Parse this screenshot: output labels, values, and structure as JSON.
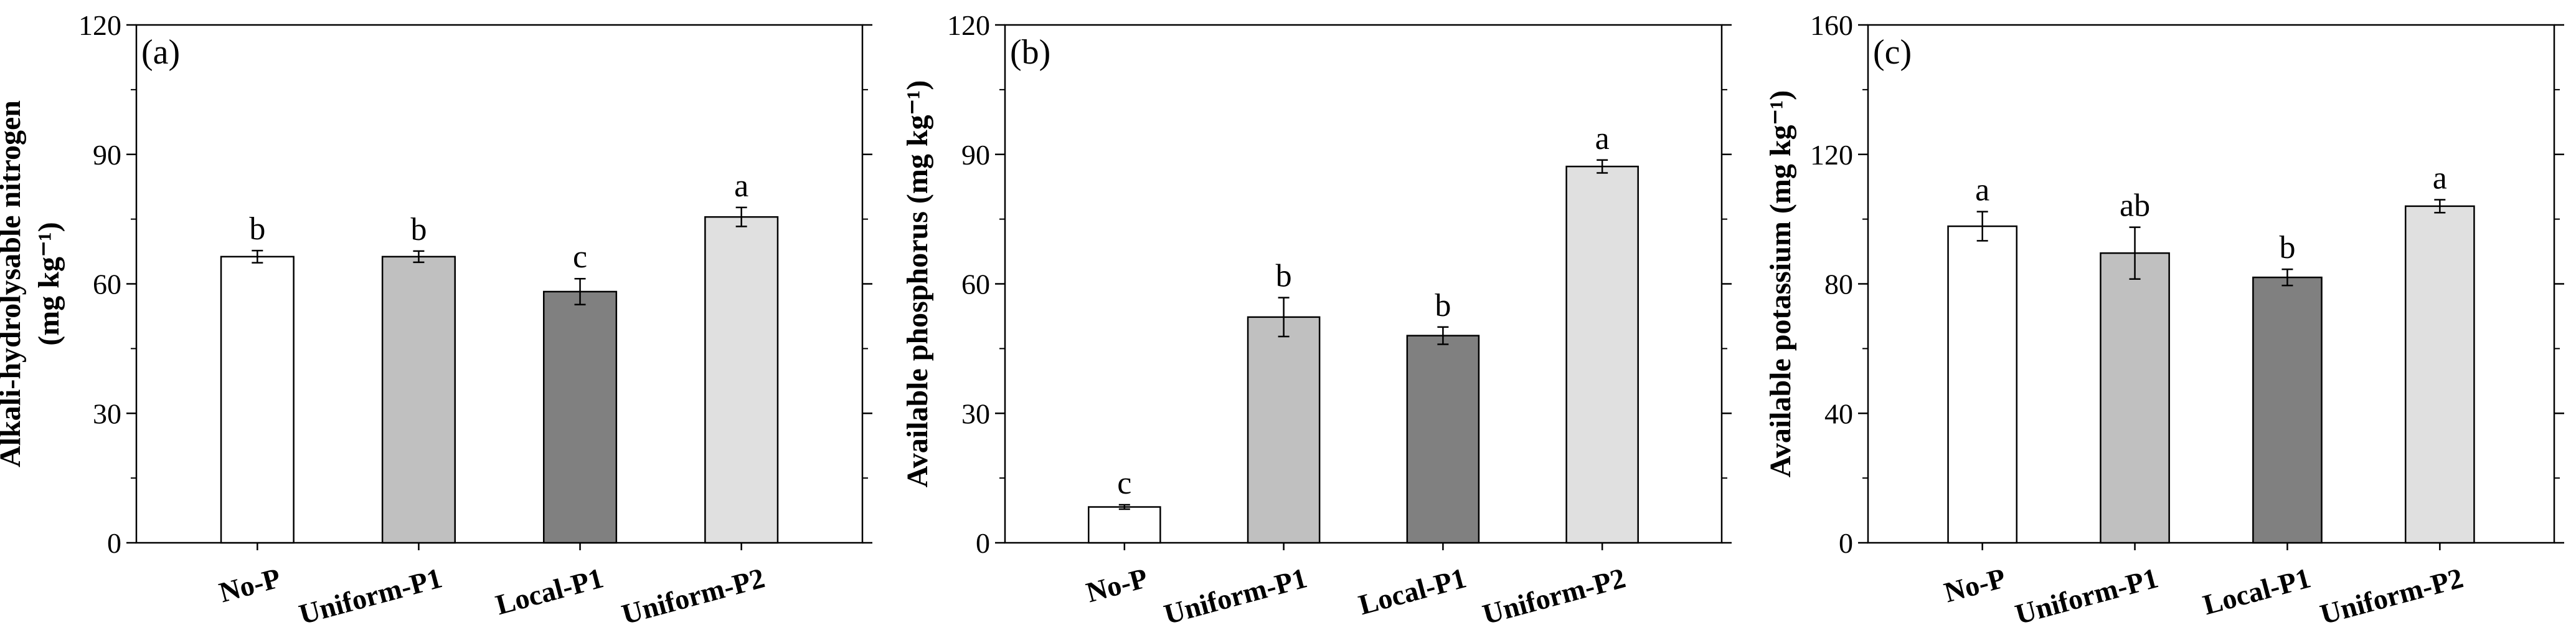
{
  "chart_data": [
    {
      "type": "bar",
      "panel_label": "(a)",
      "ylabel": [
        "Alkali-hydrolysable nitrogen",
        "(mg kg⁻¹)"
      ],
      "categories": [
        "No-P",
        "Uniform-P1",
        "Local-P1",
        "Uniform-P2"
      ],
      "values": [
        66.3,
        66.3,
        58.2,
        75.5
      ],
      "errors": [
        1.4,
        1.3,
        3.0,
        2.2
      ],
      "significance_labels": [
        "b",
        "b",
        "c",
        "a"
      ],
      "colors": [
        "#ffffff",
        "#c0c0c0",
        "#808080",
        "#e0e0e0"
      ],
      "ylim": [
        0,
        120
      ],
      "yticks": [
        0,
        30,
        60,
        90,
        120
      ],
      "minor_yticks": [
        15,
        45,
        75,
        105
      ]
    },
    {
      "type": "bar",
      "panel_label": "(b)",
      "ylabel": [
        "Available phosphorus (mg kg⁻¹)"
      ],
      "categories": [
        "No-P",
        "Uniform-P1",
        "Local-P1",
        "Uniform-P2"
      ],
      "values": [
        8.3,
        52.3,
        48.0,
        87.2
      ],
      "errors": [
        0.5,
        4.5,
        2.0,
        1.5
      ],
      "significance_labels": [
        "c",
        "b",
        "b",
        "a"
      ],
      "colors": [
        "#ffffff",
        "#c0c0c0",
        "#808080",
        "#e0e0e0"
      ],
      "ylim": [
        0,
        120
      ],
      "yticks": [
        0,
        30,
        60,
        90,
        120
      ],
      "minor_yticks": [
        15,
        45,
        75,
        105
      ]
    },
    {
      "type": "bar",
      "panel_label": "(c)",
      "ylabel": [
        "Available potassium (mg kg⁻¹)"
      ],
      "categories": [
        "No-P",
        "Uniform-P1",
        "Local-P1",
        "Uniform-P2"
      ],
      "values": [
        97.8,
        89.5,
        82.0,
        104.0
      ],
      "errors": [
        4.5,
        8.0,
        2.5,
        2.0
      ],
      "significance_labels": [
        "a",
        "ab",
        "b",
        "a"
      ],
      "colors": [
        "#ffffff",
        "#c0c0c0",
        "#808080",
        "#e0e0e0"
      ],
      "ylim": [
        0,
        160
      ],
      "yticks": [
        0,
        40,
        80,
        120,
        160
      ],
      "minor_yticks": [
        20,
        60,
        100,
        140
      ]
    }
  ]
}
